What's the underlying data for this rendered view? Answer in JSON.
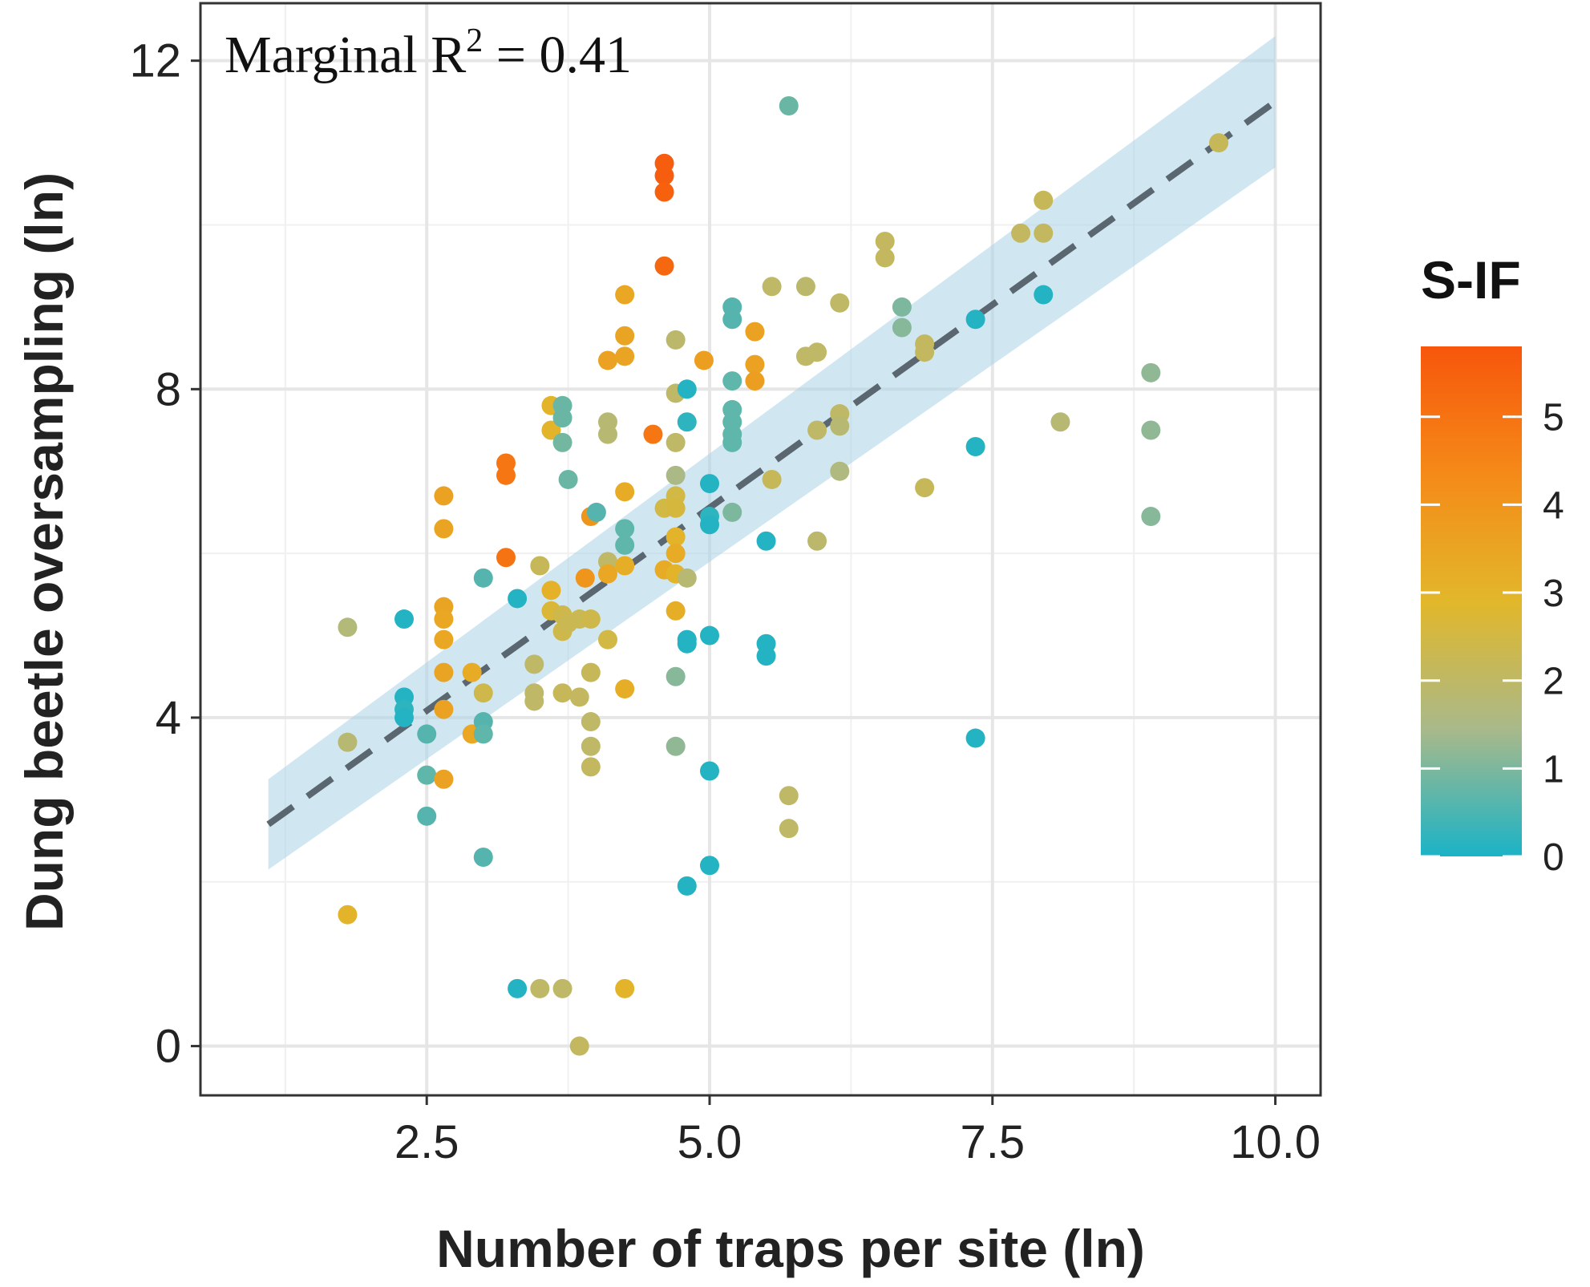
{
  "chart_data": {
    "type": "scatter",
    "title": "",
    "xlabel": "Number of traps per site (ln)",
    "ylabel": "Dung beetle oversampling (ln)",
    "xlim": [
      0.5,
      10.4
    ],
    "ylim": [
      -0.6,
      12.7
    ],
    "xticks": [
      2.5,
      5.0,
      7.5,
      10.0
    ],
    "xtick_labels": [
      "2.5",
      "5.0",
      "7.5",
      "10.0"
    ],
    "yticks": [
      0,
      4,
      8,
      12
    ],
    "ytick_labels": [
      "0",
      "4",
      "8",
      "12"
    ],
    "grid": true,
    "annotation": {
      "prefix": "Marginal R",
      "superscript": "2",
      "suffix": " = 0.41"
    },
    "colorbar": {
      "title": "S-IF",
      "min": 0,
      "max": 5.8,
      "ticks": [
        0,
        1,
        2,
        3,
        4,
        5
      ],
      "tick_labels": [
        "0",
        "1",
        "2",
        "3",
        "4",
        "5"
      ],
      "colors": [
        "#1ab3c7",
        "#a9b98a",
        "#e2b72a",
        "#f58a18",
        "#f7560c"
      ]
    },
    "fit_line": {
      "x": [
        1.1,
        10.0
      ],
      "y": [
        2.7,
        11.5
      ],
      "ci_lower": [
        2.15,
        10.7
      ],
      "ci_upper": [
        3.25,
        12.3
      ],
      "color": "#5a6670",
      "ci_color": "#a9d3e7"
    },
    "points": [
      {
        "x": 1.8,
        "y": 5.1,
        "c": 1.7
      },
      {
        "x": 1.8,
        "y": 3.7,
        "c": 1.8
      },
      {
        "x": 1.8,
        "y": 1.6,
        "c": 3.0
      },
      {
        "x": 2.3,
        "y": 5.2,
        "c": 0.1
      },
      {
        "x": 2.3,
        "y": 4.25,
        "c": 0.1
      },
      {
        "x": 2.3,
        "y": 4.1,
        "c": 0.2
      },
      {
        "x": 2.3,
        "y": 4.0,
        "c": 0.1
      },
      {
        "x": 2.5,
        "y": 3.8,
        "c": 0.6
      },
      {
        "x": 2.5,
        "y": 3.3,
        "c": 0.7
      },
      {
        "x": 2.5,
        "y": 2.8,
        "c": 0.6
      },
      {
        "x": 2.65,
        "y": 6.7,
        "c": 3.6
      },
      {
        "x": 2.65,
        "y": 6.3,
        "c": 3.5
      },
      {
        "x": 2.65,
        "y": 5.35,
        "c": 3.5
      },
      {
        "x": 2.65,
        "y": 5.2,
        "c": 3.4
      },
      {
        "x": 2.65,
        "y": 4.95,
        "c": 3.4
      },
      {
        "x": 2.65,
        "y": 4.55,
        "c": 3.5
      },
      {
        "x": 2.65,
        "y": 4.1,
        "c": 3.6
      },
      {
        "x": 2.65,
        "y": 3.25,
        "c": 3.6
      },
      {
        "x": 2.9,
        "y": 4.55,
        "c": 3.3
      },
      {
        "x": 2.9,
        "y": 3.8,
        "c": 3.4
      },
      {
        "x": 3.0,
        "y": 5.7,
        "c": 0.6
      },
      {
        "x": 3.0,
        "y": 4.3,
        "c": 2.4
      },
      {
        "x": 3.0,
        "y": 3.95,
        "c": 0.6
      },
      {
        "x": 3.0,
        "y": 3.8,
        "c": 0.7
      },
      {
        "x": 3.0,
        "y": 2.3,
        "c": 0.6
      },
      {
        "x": 3.2,
        "y": 7.1,
        "c": 4.9
      },
      {
        "x": 3.2,
        "y": 6.95,
        "c": 4.9
      },
      {
        "x": 3.2,
        "y": 5.95,
        "c": 5.0
      },
      {
        "x": 3.3,
        "y": 5.45,
        "c": 0.1
      },
      {
        "x": 3.3,
        "y": 0.7,
        "c": 0.1
      },
      {
        "x": 3.45,
        "y": 4.65,
        "c": 2.0
      },
      {
        "x": 3.45,
        "y": 4.3,
        "c": 2.0
      },
      {
        "x": 3.45,
        "y": 4.2,
        "c": 2.0
      },
      {
        "x": 3.5,
        "y": 5.85,
        "c": 2.2
      },
      {
        "x": 3.5,
        "y": 0.7,
        "c": 2.0
      },
      {
        "x": 3.6,
        "y": 7.8,
        "c": 3.0
      },
      {
        "x": 3.6,
        "y": 7.5,
        "c": 3.0
      },
      {
        "x": 3.6,
        "y": 5.55,
        "c": 3.1
      },
      {
        "x": 3.6,
        "y": 5.3,
        "c": 2.7
      },
      {
        "x": 3.7,
        "y": 7.8,
        "c": 0.8
      },
      {
        "x": 3.7,
        "y": 7.65,
        "c": 0.8
      },
      {
        "x": 3.7,
        "y": 7.35,
        "c": 0.9
      },
      {
        "x": 3.7,
        "y": 5.25,
        "c": 2.4
      },
      {
        "x": 3.7,
        "y": 5.05,
        "c": 2.4
      },
      {
        "x": 3.7,
        "y": 4.3,
        "c": 2.2
      },
      {
        "x": 3.7,
        "y": 0.7,
        "c": 2.0
      },
      {
        "x": 3.75,
        "y": 6.9,
        "c": 0.8
      },
      {
        "x": 3.75,
        "y": 5.15,
        "c": 2.3
      },
      {
        "x": 3.85,
        "y": 5.2,
        "c": 2.3
      },
      {
        "x": 3.85,
        "y": 4.25,
        "c": 2.1
      },
      {
        "x": 3.85,
        "y": 0.0,
        "c": 2.1
      },
      {
        "x": 3.9,
        "y": 5.7,
        "c": 4.0
      },
      {
        "x": 3.95,
        "y": 6.45,
        "c": 4.0
      },
      {
        "x": 3.95,
        "y": 5.2,
        "c": 2.4
      },
      {
        "x": 3.95,
        "y": 4.55,
        "c": 2.2
      },
      {
        "x": 3.95,
        "y": 3.95,
        "c": 2.0
      },
      {
        "x": 3.95,
        "y": 3.65,
        "c": 2.0
      },
      {
        "x": 3.95,
        "y": 3.4,
        "c": 2.1
      },
      {
        "x": 4.0,
        "y": 6.5,
        "c": 0.6
      },
      {
        "x": 4.1,
        "y": 8.35,
        "c": 3.6
      },
      {
        "x": 4.1,
        "y": 7.6,
        "c": 1.8
      },
      {
        "x": 4.1,
        "y": 7.45,
        "c": 1.8
      },
      {
        "x": 4.1,
        "y": 5.9,
        "c": 2.0
      },
      {
        "x": 4.1,
        "y": 5.75,
        "c": 3.4
      },
      {
        "x": 4.1,
        "y": 4.95,
        "c": 2.5
      },
      {
        "x": 4.25,
        "y": 9.15,
        "c": 3.4
      },
      {
        "x": 4.25,
        "y": 8.65,
        "c": 3.5
      },
      {
        "x": 4.25,
        "y": 8.4,
        "c": 3.5
      },
      {
        "x": 4.25,
        "y": 6.75,
        "c": 3.3
      },
      {
        "x": 4.25,
        "y": 6.3,
        "c": 0.7
      },
      {
        "x": 4.25,
        "y": 6.1,
        "c": 0.7
      },
      {
        "x": 4.25,
        "y": 5.85,
        "c": 3.2
      },
      {
        "x": 4.25,
        "y": 4.35,
        "c": 3.2
      },
      {
        "x": 4.25,
        "y": 0.7,
        "c": 3.0
      },
      {
        "x": 4.5,
        "y": 7.45,
        "c": 4.9
      },
      {
        "x": 4.6,
        "y": 10.75,
        "c": 5.6
      },
      {
        "x": 4.6,
        "y": 10.6,
        "c": 5.6
      },
      {
        "x": 4.6,
        "y": 10.4,
        "c": 5.5
      },
      {
        "x": 4.6,
        "y": 9.5,
        "c": 5.3
      },
      {
        "x": 4.6,
        "y": 6.55,
        "c": 2.5
      },
      {
        "x": 4.6,
        "y": 5.8,
        "c": 3.3
      },
      {
        "x": 4.7,
        "y": 8.6,
        "c": 1.9
      },
      {
        "x": 4.7,
        "y": 7.95,
        "c": 2.0
      },
      {
        "x": 4.7,
        "y": 7.35,
        "c": 2.0
      },
      {
        "x": 4.7,
        "y": 6.95,
        "c": 1.5
      },
      {
        "x": 4.7,
        "y": 6.7,
        "c": 2.5
      },
      {
        "x": 4.7,
        "y": 6.55,
        "c": 2.6
      },
      {
        "x": 4.7,
        "y": 6.2,
        "c": 3.0
      },
      {
        "x": 4.7,
        "y": 6.0,
        "c": 3.3
      },
      {
        "x": 4.7,
        "y": 5.75,
        "c": 3.0
      },
      {
        "x": 4.7,
        "y": 5.3,
        "c": 3.2
      },
      {
        "x": 4.7,
        "y": 4.5,
        "c": 1.1
      },
      {
        "x": 4.7,
        "y": 3.65,
        "c": 1.2
      },
      {
        "x": 4.8,
        "y": 8.0,
        "c": 0.1
      },
      {
        "x": 4.8,
        "y": 7.6,
        "c": 0.2
      },
      {
        "x": 4.8,
        "y": 5.7,
        "c": 1.8
      },
      {
        "x": 4.8,
        "y": 4.95,
        "c": 0.1
      },
      {
        "x": 4.8,
        "y": 4.9,
        "c": 0.1
      },
      {
        "x": 4.8,
        "y": 1.95,
        "c": 0.1
      },
      {
        "x": 4.95,
        "y": 8.35,
        "c": 3.7
      },
      {
        "x": 5.0,
        "y": 6.85,
        "c": 0.1
      },
      {
        "x": 5.0,
        "y": 6.45,
        "c": 0.2
      },
      {
        "x": 5.0,
        "y": 6.35,
        "c": 0.1
      },
      {
        "x": 5.0,
        "y": 5.0,
        "c": 0.1
      },
      {
        "x": 5.0,
        "y": 3.35,
        "c": 0.1
      },
      {
        "x": 5.0,
        "y": 2.2,
        "c": 0.1
      },
      {
        "x": 5.2,
        "y": 9.0,
        "c": 0.6
      },
      {
        "x": 5.2,
        "y": 8.85,
        "c": 0.6
      },
      {
        "x": 5.2,
        "y": 8.1,
        "c": 0.7
      },
      {
        "x": 5.2,
        "y": 7.75,
        "c": 0.7
      },
      {
        "x": 5.2,
        "y": 7.6,
        "c": 0.7
      },
      {
        "x": 5.2,
        "y": 7.45,
        "c": 0.7
      },
      {
        "x": 5.2,
        "y": 7.35,
        "c": 0.7
      },
      {
        "x": 5.2,
        "y": 6.5,
        "c": 1.0
      },
      {
        "x": 5.4,
        "y": 8.7,
        "c": 3.6
      },
      {
        "x": 5.4,
        "y": 8.3,
        "c": 3.6
      },
      {
        "x": 5.4,
        "y": 8.1,
        "c": 3.7
      },
      {
        "x": 5.5,
        "y": 6.15,
        "c": 0.1
      },
      {
        "x": 5.5,
        "y": 4.9,
        "c": 0.1
      },
      {
        "x": 5.5,
        "y": 4.75,
        "c": 0.1
      },
      {
        "x": 5.55,
        "y": 9.25,
        "c": 2.0
      },
      {
        "x": 5.55,
        "y": 6.9,
        "c": 2.2
      },
      {
        "x": 5.7,
        "y": 11.45,
        "c": 0.8
      },
      {
        "x": 5.7,
        "y": 3.05,
        "c": 2.0
      },
      {
        "x": 5.7,
        "y": 2.65,
        "c": 2.0
      },
      {
        "x": 5.85,
        "y": 9.25,
        "c": 1.9
      },
      {
        "x": 5.85,
        "y": 8.4,
        "c": 2.0
      },
      {
        "x": 5.95,
        "y": 8.45,
        "c": 2.0
      },
      {
        "x": 5.95,
        "y": 7.5,
        "c": 2.0
      },
      {
        "x": 5.95,
        "y": 6.15,
        "c": 1.9
      },
      {
        "x": 6.15,
        "y": 9.05,
        "c": 2.0
      },
      {
        "x": 6.15,
        "y": 7.7,
        "c": 2.0
      },
      {
        "x": 6.15,
        "y": 7.55,
        "c": 1.8
      },
      {
        "x": 6.15,
        "y": 7.0,
        "c": 1.6
      },
      {
        "x": 6.55,
        "y": 9.8,
        "c": 2.1
      },
      {
        "x": 6.55,
        "y": 9.6,
        "c": 2.1
      },
      {
        "x": 6.7,
        "y": 9.0,
        "c": 1.0
      },
      {
        "x": 6.7,
        "y": 8.75,
        "c": 1.1
      },
      {
        "x": 6.9,
        "y": 8.55,
        "c": 2.1
      },
      {
        "x": 6.9,
        "y": 8.45,
        "c": 2.1
      },
      {
        "x": 6.9,
        "y": 6.8,
        "c": 2.2
      },
      {
        "x": 7.35,
        "y": 8.85,
        "c": 0.1
      },
      {
        "x": 7.35,
        "y": 7.3,
        "c": 0.1
      },
      {
        "x": 7.35,
        "y": 3.75,
        "c": 0.1
      },
      {
        "x": 7.75,
        "y": 9.9,
        "c": 2.1
      },
      {
        "x": 7.95,
        "y": 10.3,
        "c": 2.2
      },
      {
        "x": 7.95,
        "y": 9.9,
        "c": 2.1
      },
      {
        "x": 7.95,
        "y": 9.15,
        "c": 0.1
      },
      {
        "x": 8.1,
        "y": 7.6,
        "c": 1.8
      },
      {
        "x": 8.9,
        "y": 8.2,
        "c": 1.2
      },
      {
        "x": 8.9,
        "y": 7.5,
        "c": 1.2
      },
      {
        "x": 8.9,
        "y": 6.45,
        "c": 1.1
      },
      {
        "x": 9.5,
        "y": 11.0,
        "c": 2.2
      }
    ]
  }
}
